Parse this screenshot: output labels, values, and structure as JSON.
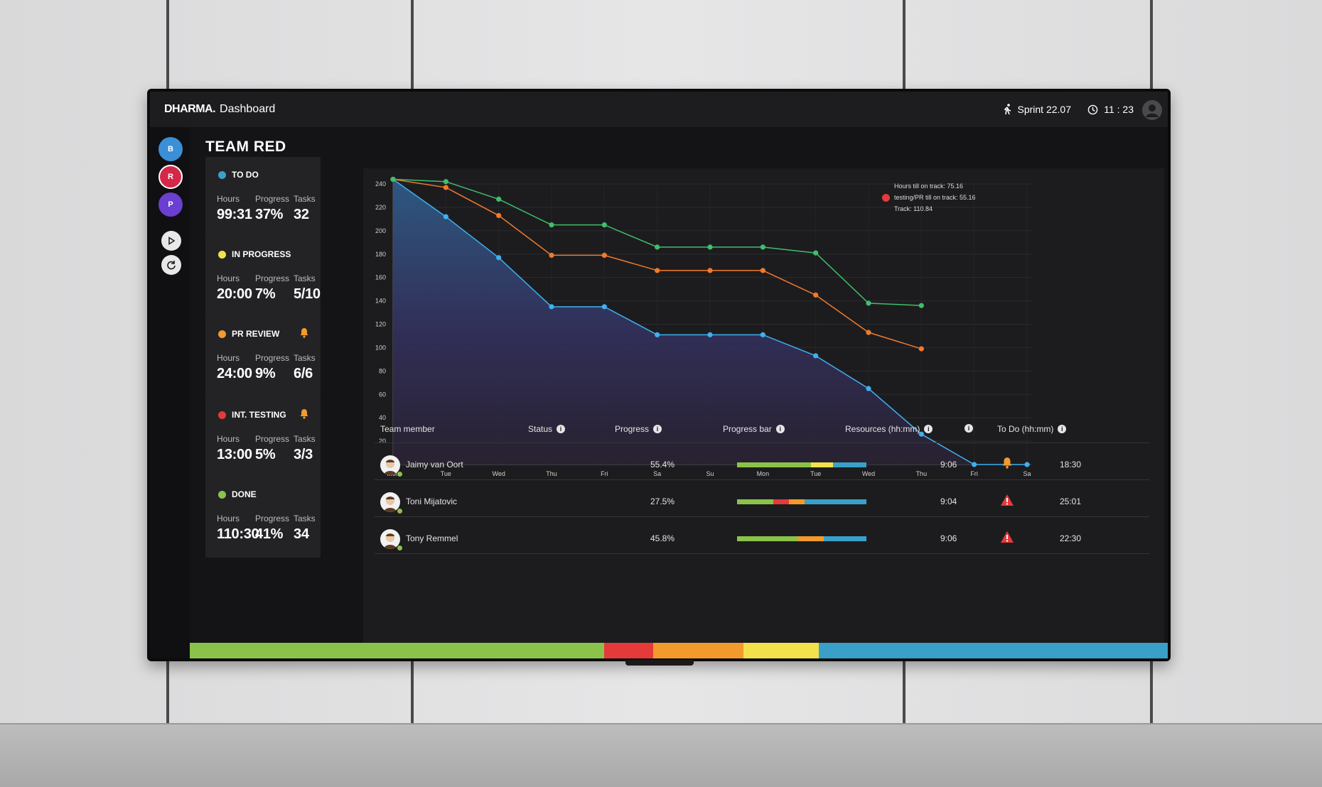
{
  "header": {
    "brand": "DHARMA.",
    "brand_sub": "Dashboard",
    "sprint": "Sprint 22.07",
    "time": "11 : 23"
  },
  "rail": {
    "teams": [
      {
        "label": "B",
        "color": "#3a8fd6"
      },
      {
        "label": "R",
        "color": "#d3284a"
      },
      {
        "label": "P",
        "color": "#6a3fd1"
      }
    ]
  },
  "team_title": "TEAM RED",
  "cards": [
    {
      "title": "TO DO",
      "color": "#3aa0c8",
      "bell": false,
      "labels": [
        "Hours",
        "Progress",
        "Tasks"
      ],
      "values": [
        "99:31",
        "37%",
        "32"
      ]
    },
    {
      "title": "IN PROGRESS",
      "color": "#f2e14b",
      "bell": false,
      "labels": [
        "Hours",
        "Progress",
        "Tasks"
      ],
      "values": [
        "20:00",
        "7%",
        "5/10"
      ]
    },
    {
      "title": "PR REVIEW",
      "color": "#f39a2d",
      "bell": true,
      "labels": [
        "Hours",
        "Progress",
        "Tasks"
      ],
      "values": [
        "24:00",
        "9%",
        "6/6"
      ]
    },
    {
      "title": "INT. TESTING",
      "color": "#e53a3a",
      "bell": true,
      "labels": [
        "Hours",
        "Progress",
        "Tasks"
      ],
      "values": [
        "13:00",
        "5%",
        "3/3"
      ]
    },
    {
      "title": "DONE",
      "color": "#8bc34a",
      "bell": false,
      "labels": [
        "Hours",
        "Progress",
        "Tasks"
      ],
      "values": [
        "110:30",
        "41%",
        "34"
      ]
    }
  ],
  "legend": {
    "line1": "Hours till on track: 75.16",
    "line2": "testing/PR till on track: 55.16",
    "line3": "Track: 110.84"
  },
  "chart_data": {
    "type": "line",
    "categories": [
      "Mon",
      "Tue",
      "Wed",
      "Thu",
      "Fri",
      "Sa",
      "Su",
      "Mon",
      "Tue",
      "Wed",
      "Thu",
      "Fri",
      "Sa"
    ],
    "ylim": [
      0,
      240
    ],
    "yticks": [
      0,
      20,
      40,
      60,
      80,
      100,
      120,
      140,
      160,
      180,
      200,
      220,
      240
    ],
    "grid": true,
    "series": [
      {
        "color": "#3fb0f0",
        "area": true,
        "values": [
          244,
          212,
          177,
          135,
          135,
          111,
          111,
          111,
          93,
          65,
          26,
          0,
          0
        ]
      },
      {
        "color": "#f07a2b",
        "area": false,
        "values": [
          244,
          237,
          213,
          179,
          179,
          166,
          166,
          166,
          145,
          113,
          99,
          null,
          null
        ]
      },
      {
        "color": "#3fbf6a",
        "area": false,
        "values": [
          244,
          242,
          227,
          205,
          205,
          186,
          186,
          186,
          181,
          138,
          136,
          null,
          null
        ]
      }
    ]
  },
  "table": {
    "headers": [
      "Team member",
      "Status",
      "Progress",
      "Progress bar",
      "Resources (hh:mm)",
      "",
      "To Do (hh:mm)"
    ],
    "rows": [
      {
        "name": "Jaimy van Oort",
        "progress": "55.4%",
        "resources": "9:06",
        "alert": "bell",
        "todo": "18:30",
        "bar": [
          {
            "w": 0.57,
            "c": "#8bc34a"
          },
          {
            "w": 0.17,
            "c": "#f2e14b"
          },
          {
            "w": 0.26,
            "c": "#3aa0c8"
          }
        ]
      },
      {
        "name": "Toni Mijatovic",
        "progress": "27.5%",
        "resources": "9:04",
        "alert": "warning",
        "todo": "25:01",
        "bar": [
          {
            "w": 0.28,
            "c": "#8bc34a"
          },
          {
            "w": 0.12,
            "c": "#e53a3a"
          },
          {
            "w": 0.12,
            "c": "#f39a2d"
          },
          {
            "w": 0.48,
            "c": "#3aa0c8"
          }
        ]
      },
      {
        "name": "Tony Remmel",
        "progress": "45.8%",
        "resources": "9:06",
        "alert": "warning",
        "todo": "22:30",
        "bar": [
          {
            "w": 0.47,
            "c": "#8bc34a"
          },
          {
            "w": 0.2,
            "c": "#f39a2d"
          },
          {
            "w": 0.33,
            "c": "#3aa0c8"
          }
        ]
      }
    ]
  },
  "bottom_bar": [
    {
      "w": 0.424,
      "c": "#8bc34a"
    },
    {
      "w": 0.05,
      "c": "#e53a3a"
    },
    {
      "w": 0.092,
      "c": "#f39a2d"
    },
    {
      "w": 0.077,
      "c": "#f2e14b"
    },
    {
      "w": 0.357,
      "c": "#3aa0c8"
    }
  ]
}
